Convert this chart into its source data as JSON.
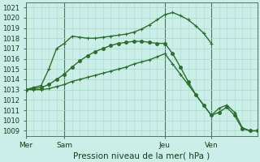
{
  "title": "Pression niveau de la mer( hPa )",
  "bg_color": "#cceee8",
  "grid_major_color": "#aaddcc",
  "grid_minor_color": "#c0e8e0",
  "line_color": "#2d6e2d",
  "ylim": [
    1008.5,
    1021.5
  ],
  "yticks": [
    1009,
    1010,
    1011,
    1012,
    1013,
    1014,
    1015,
    1016,
    1017,
    1018,
    1019,
    1020,
    1021
  ],
  "xtick_labels": [
    "Mer",
    "Sam",
    "Jeu",
    "Ven"
  ],
  "xtick_positions": [
    0,
    5,
    18,
    24
  ],
  "vline_positions": [
    0,
    5,
    18,
    24
  ],
  "xlim": [
    0,
    30
  ],
  "line1_x": [
    0,
    1,
    2,
    3,
    4,
    5,
    6,
    7,
    8,
    9,
    10,
    11,
    12,
    13,
    14,
    15,
    16,
    17,
    18,
    19,
    20,
    21,
    22,
    23,
    24
  ],
  "line1_y": [
    1013.0,
    1013.2,
    1013.4,
    1015.0,
    1017.0,
    1017.5,
    1018.2,
    1018.1,
    1018.0,
    1018.0,
    1018.1,
    1018.2,
    1018.3,
    1018.4,
    1018.6,
    1018.9,
    1019.3,
    1019.8,
    1020.3,
    1020.5,
    1020.2,
    1019.8,
    1019.2,
    1018.5,
    1017.5
  ],
  "line2_x": [
    0,
    1,
    2,
    3,
    4,
    5,
    6,
    7,
    8,
    9,
    10,
    11,
    12,
    13,
    14,
    15,
    16,
    17,
    18,
    19,
    20,
    21,
    22,
    23,
    24,
    25,
    26,
    27,
    28,
    29,
    30
  ],
  "line2_y": [
    1013.0,
    1013.0,
    1013.0,
    1013.1,
    1013.3,
    1013.5,
    1013.8,
    1014.0,
    1014.2,
    1014.4,
    1014.6,
    1014.8,
    1015.0,
    1015.2,
    1015.5,
    1015.7,
    1015.9,
    1016.2,
    1016.5,
    1015.5,
    1014.5,
    1013.5,
    1012.5,
    1011.5,
    1010.5,
    1011.2,
    1011.5,
    1010.8,
    1009.3,
    1009.0,
    1009.0
  ],
  "line3_x": [
    0,
    1,
    2,
    3,
    4,
    5,
    6,
    7,
    8,
    9,
    10,
    11,
    12,
    13,
    14,
    15,
    16,
    17,
    18,
    19,
    20,
    21,
    22,
    23,
    24,
    25,
    26,
    27,
    28,
    29,
    30
  ],
  "line3_y": [
    1013.0,
    1013.1,
    1013.2,
    1013.5,
    1014.0,
    1014.5,
    1015.2,
    1015.8,
    1016.3,
    1016.7,
    1017.0,
    1017.3,
    1017.5,
    1017.6,
    1017.7,
    1017.7,
    1017.6,
    1017.5,
    1017.5,
    1016.5,
    1015.2,
    1013.8,
    1012.5,
    1011.5,
    1010.5,
    1010.8,
    1011.3,
    1010.5,
    1009.2,
    1009.0,
    1009.0
  ]
}
